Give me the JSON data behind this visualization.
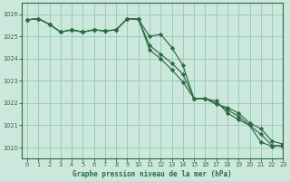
{
  "title": "Graphe pression niveau de la mer (hPa)",
  "bg_color": "#cce8dd",
  "grid_color": "#99ccbb",
  "line_color": "#2d6a3f",
  "marker_color": "#2d6a3f",
  "xlim": [
    -0.5,
    23
  ],
  "ylim": [
    1019.5,
    1026.5
  ],
  "yticks": [
    1020,
    1021,
    1022,
    1023,
    1024,
    1025,
    1026
  ],
  "xticks": [
    0,
    1,
    2,
    3,
    4,
    5,
    6,
    7,
    8,
    9,
    10,
    11,
    12,
    13,
    14,
    15,
    16,
    17,
    18,
    19,
    20,
    21,
    22,
    23
  ],
  "line1": [
    1025.75,
    1025.8,
    1025.55,
    1025.2,
    1025.3,
    1025.2,
    1025.3,
    1025.25,
    1025.3,
    1025.8,
    1025.78,
    1025.0,
    1025.1,
    1024.5,
    1023.7,
    1022.2,
    1022.2,
    1022.1,
    1021.55,
    1021.25,
    1021.0,
    1020.25,
    1020.05,
    1020.1
  ],
  "line2": [
    1025.75,
    1025.8,
    1025.55,
    1025.2,
    1025.3,
    1025.2,
    1025.3,
    1025.25,
    1025.3,
    1025.8,
    1025.78,
    1024.6,
    1024.2,
    1023.8,
    1023.3,
    1022.2,
    1022.2,
    1022.0,
    1021.7,
    1021.4,
    1021.0,
    1020.6,
    1020.1,
    1020.05
  ],
  "line3": [
    1025.75,
    1025.8,
    1025.55,
    1025.2,
    1025.3,
    1025.2,
    1025.3,
    1025.25,
    1025.3,
    1025.8,
    1025.78,
    1024.4,
    1024.0,
    1023.5,
    1022.95,
    1022.2,
    1022.2,
    1021.95,
    1021.8,
    1021.55,
    1021.1,
    1020.85,
    1020.3,
    1020.15
  ]
}
